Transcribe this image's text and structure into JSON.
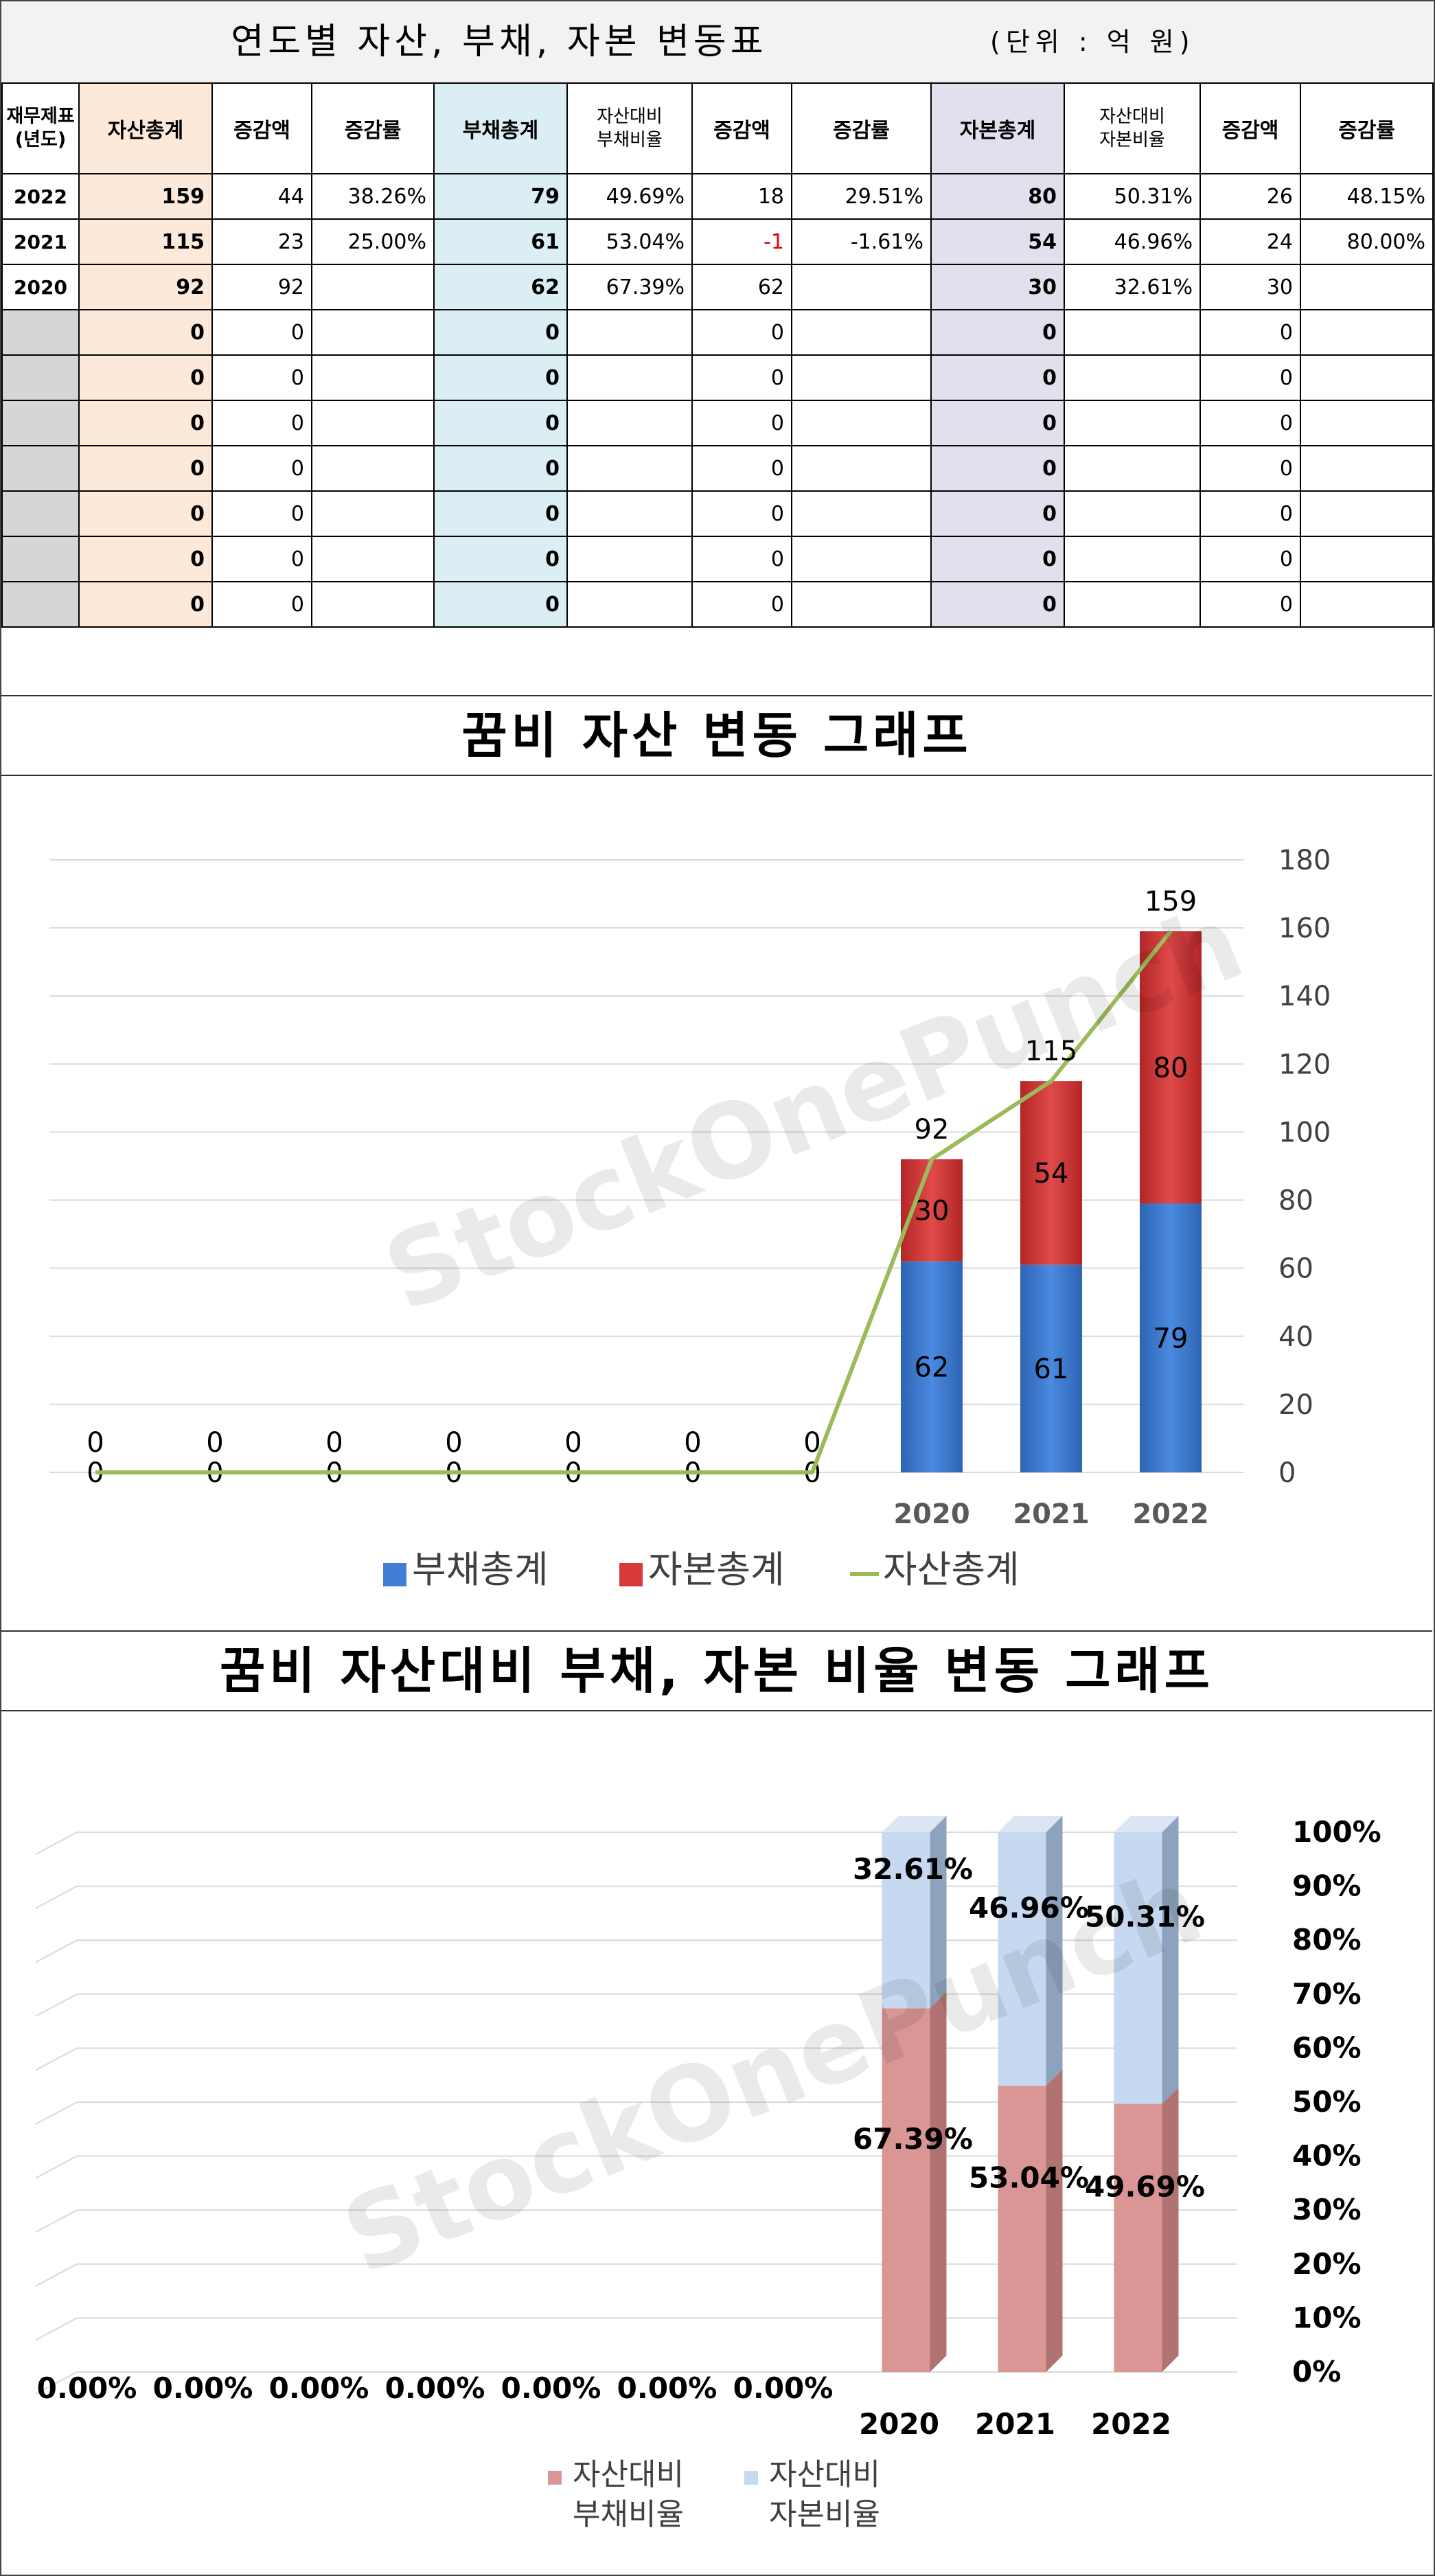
{
  "table": {
    "title": "연도별 자산, 부채, 자본 변동표",
    "unit": "(단위 : 억 원)",
    "headers": [
      "재무제표\n(년도)",
      "자산총계",
      "증감액",
      "증감률",
      "부채총계",
      "자산대비\n부채비율",
      "증감액",
      "증감률",
      "자본총계",
      "자산대비\n자본비율",
      "증감액",
      "증감률"
    ],
    "rows": [
      [
        "2022",
        "159",
        "44",
        "38.26%",
        "79",
        "49.69%",
        "18",
        "29.51%",
        "80",
        "50.31%",
        "26",
        "48.15%"
      ],
      [
        "2021",
        "115",
        "23",
        "25.00%",
        "61",
        "53.04%",
        "-1",
        "-1.61%",
        "54",
        "46.96%",
        "24",
        "80.00%"
      ],
      [
        "2020",
        "92",
        "92",
        "",
        "62",
        "67.39%",
        "62",
        "",
        "30",
        "32.61%",
        "30",
        ""
      ],
      [
        "",
        "0",
        "0",
        "",
        "0",
        "",
        "0",
        "",
        "0",
        "",
        "0",
        ""
      ],
      [
        "",
        "0",
        "0",
        "",
        "0",
        "",
        "0",
        "",
        "0",
        "",
        "0",
        ""
      ],
      [
        "",
        "0",
        "0",
        "",
        "0",
        "",
        "0",
        "",
        "0",
        "",
        "0",
        ""
      ],
      [
        "",
        "0",
        "0",
        "",
        "0",
        "",
        "0",
        "",
        "0",
        "",
        "0",
        ""
      ],
      [
        "",
        "0",
        "0",
        "",
        "0",
        "",
        "0",
        "",
        "0",
        "",
        "0",
        ""
      ],
      [
        "",
        "0",
        "0",
        "",
        "0",
        "",
        "0",
        "",
        "0",
        "",
        "0",
        ""
      ],
      [
        "",
        "0",
        "0",
        "",
        "0",
        "",
        "0",
        "",
        "0",
        "",
        "0",
        ""
      ]
    ]
  },
  "watermark": "StockOnePunch",
  "chart_data": [
    {
      "type": "bar",
      "title": "꿈비 자산 변동 그래프",
      "categories": [
        "",
        "",
        "",
        "",
        "",
        "",
        "",
        "2020",
        "2021",
        "2022"
      ],
      "series": [
        {
          "name": "부채총계",
          "kind": "stacked-bar",
          "color": "#3f7fd6",
          "values": [
            0,
            0,
            0,
            0,
            0,
            0,
            0,
            62,
            61,
            79
          ]
        },
        {
          "name": "자본총계",
          "kind": "stacked-bar",
          "color": "#d63a3a",
          "values": [
            0,
            0,
            0,
            0,
            0,
            0,
            0,
            30,
            54,
            80
          ]
        },
        {
          "name": "자산총계",
          "kind": "line",
          "color": "#9bbb59",
          "values": [
            0,
            0,
            0,
            0,
            0,
            0,
            0,
            92,
            115,
            159
          ]
        }
      ],
      "ylim": [
        0,
        180
      ],
      "yticks": [
        "0",
        "20",
        "40",
        "60",
        "80",
        "100",
        "120",
        "140",
        "160",
        "180"
      ],
      "grid": true,
      "legend": "bottom"
    },
    {
      "type": "bar",
      "title": "꿈비 자산대비 부채, 자본 비율 변동 그래프",
      "categories": [
        "",
        "",
        "",
        "",
        "",
        "",
        "",
        "2020",
        "2021",
        "2022"
      ],
      "series": [
        {
          "name": "자산대비\n부채비율",
          "color": "#d99694",
          "values": [
            0,
            0,
            0,
            0,
            0,
            0,
            0,
            67.39,
            53.04,
            49.69
          ],
          "labels": [
            "0.00%",
            "0.00%",
            "0.00%",
            "0.00%",
            "0.00%",
            "0.00%",
            "0.00%",
            "67.39%",
            "53.04%",
            "49.69%"
          ]
        },
        {
          "name": "자산대비\n자본비율",
          "color": "#c6d9f1",
          "values": [
            0,
            0,
            0,
            0,
            0,
            0,
            0,
            32.61,
            46.96,
            50.31
          ],
          "labels": [
            "",
            "",
            "",
            "",
            "",
            "",
            "",
            "32.61%",
            "46.96%",
            "50.31%"
          ]
        }
      ],
      "ylim": [
        0,
        100
      ],
      "yticks": [
        "0%",
        "10%",
        "20%",
        "30%",
        "40%",
        "50%",
        "60%",
        "70%",
        "80%",
        "90%",
        "100%"
      ],
      "grid": true,
      "legend": "bottom"
    }
  ]
}
